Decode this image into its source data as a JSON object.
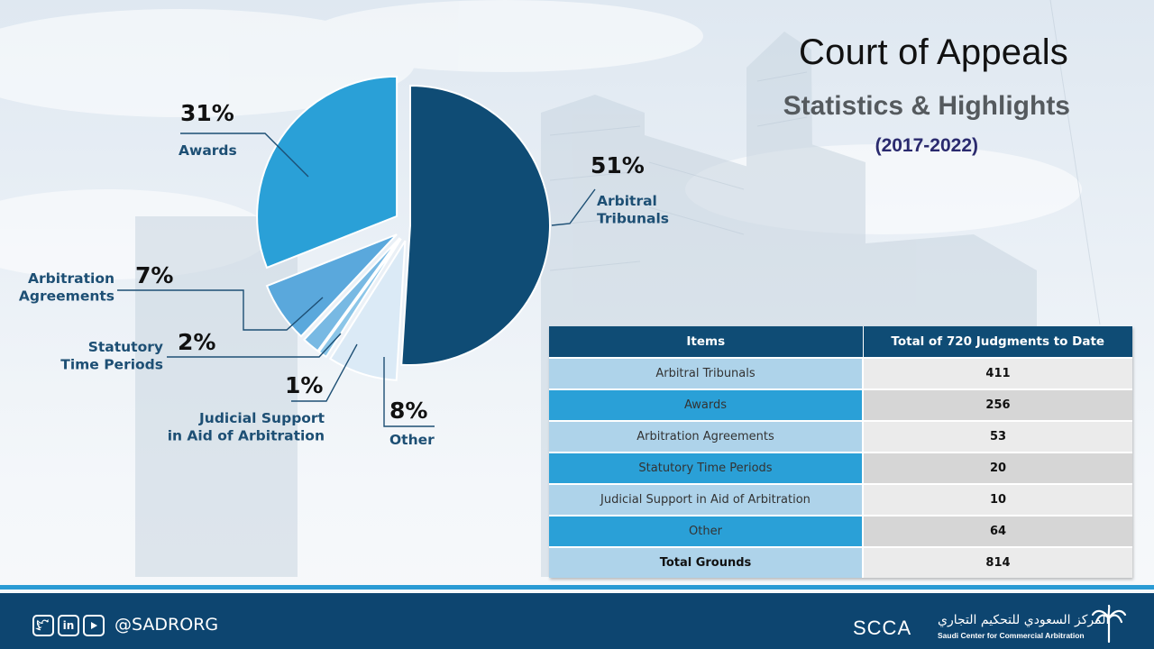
{
  "title": "Court of Appeals",
  "subtitle": "Statistics & Highlights",
  "years": "(2017-2022)",
  "chart_data": {
    "type": "pie",
    "title": "Court of Appeals",
    "categories": [
      "Arbitral Tribunals",
      "Other",
      "Judicial Support in Aid of Arbitration",
      "Statutory Time Periods",
      "Arbitration Agreements",
      "Awards"
    ],
    "values": [
      51,
      8,
      1,
      2,
      7,
      31
    ],
    "slices": [
      {
        "pct": "51%",
        "label_lines": [
          "Arbitral",
          "Tribunals"
        ],
        "color": "#0f4c75",
        "value": 51
      },
      {
        "pct": "8%",
        "label_lines": [
          "Other"
        ],
        "color": "#dbeaf6",
        "value": 8
      },
      {
        "pct": "1%",
        "label_lines": [
          "Judicial Support",
          "in Aid of Arbitration"
        ],
        "color": "#8cc6e8",
        "value": 1
      },
      {
        "pct": "2%",
        "label_lines": [
          "Statutory",
          "Time Periods"
        ],
        "color": "#78b9e3",
        "value": 2
      },
      {
        "pct": "7%",
        "label_lines": [
          "Arbitration",
          "Agreements"
        ],
        "color": "#5aa8dc",
        "value": 7
      },
      {
        "pct": "31%",
        "label_lines": [
          "Awards"
        ],
        "color": "#2aa0d7",
        "value": 31
      }
    ]
  },
  "table": {
    "headers": [
      "Items",
      "Total of 720 Judgments to Date"
    ],
    "rows": [
      {
        "item": "Arbitral Tribunals",
        "value": "411"
      },
      {
        "item": "Awards",
        "value": "256"
      },
      {
        "item": "Arbitration Agreements",
        "value": "53"
      },
      {
        "item": "Statutory Time Periods",
        "value": "20"
      },
      {
        "item": "Judicial Support in Aid of Arbitration",
        "value": "10"
      },
      {
        "item": "Other",
        "value": "64"
      },
      {
        "item": "Total Grounds",
        "value": "814"
      }
    ]
  },
  "footer": {
    "social_icons": [
      "twitter-icon",
      "linkedin-icon",
      "youtube-icon"
    ],
    "handle": "@SADRORG",
    "brand": "SCCA",
    "org_arabic": "المركز السعودي للتحكيم التجاري",
    "org_english": "Saudi Center for Commercial Arbitration"
  }
}
